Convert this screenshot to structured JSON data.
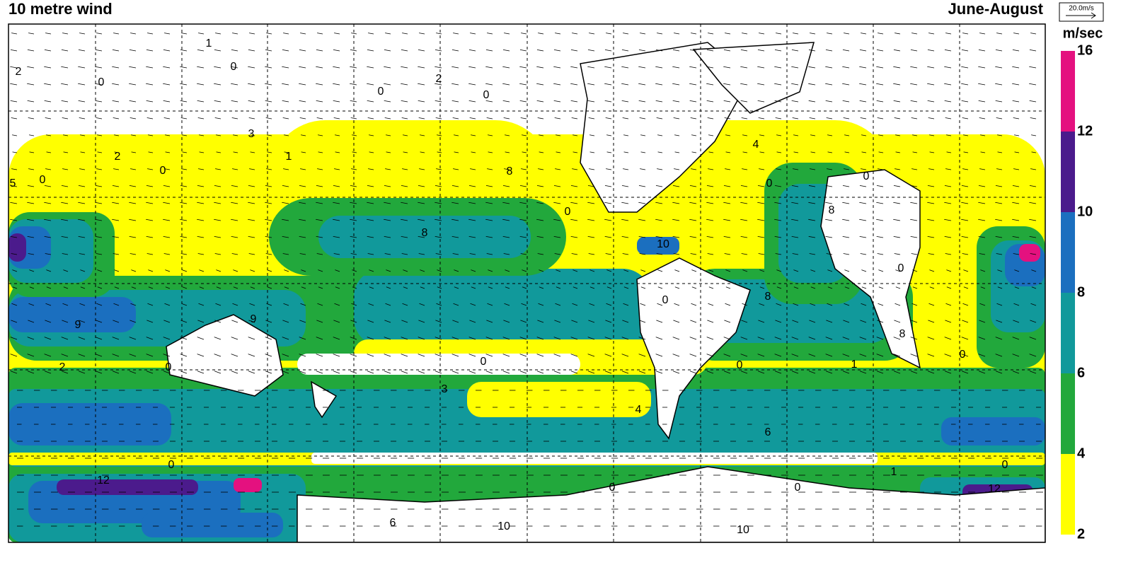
{
  "header": {
    "title": "10 metre wind",
    "season": "June-August",
    "reference_vector": "20.0m/s",
    "units": "m/sec"
  },
  "colorbar": {
    "levels": [
      2,
      4,
      6,
      8,
      10,
      12,
      16
    ],
    "colors": [
      "#ffff00",
      "#22a83c",
      "#11999b",
      "#1b6fbf",
      "#4b1b8c",
      "#e4117f"
    ]
  },
  "contour_labels": [
    1,
    2,
    0,
    0,
    2,
    0,
    0,
    3,
    2,
    0,
    1,
    5,
    8,
    0,
    0,
    4,
    0,
    0,
    8,
    10,
    0,
    0,
    8,
    8,
    9,
    9,
    2,
    0,
    0,
    3,
    0,
    1,
    0,
    4,
    6,
    8,
    0,
    12,
    0,
    0,
    6,
    10,
    10,
    1,
    0,
    12
  ]
}
